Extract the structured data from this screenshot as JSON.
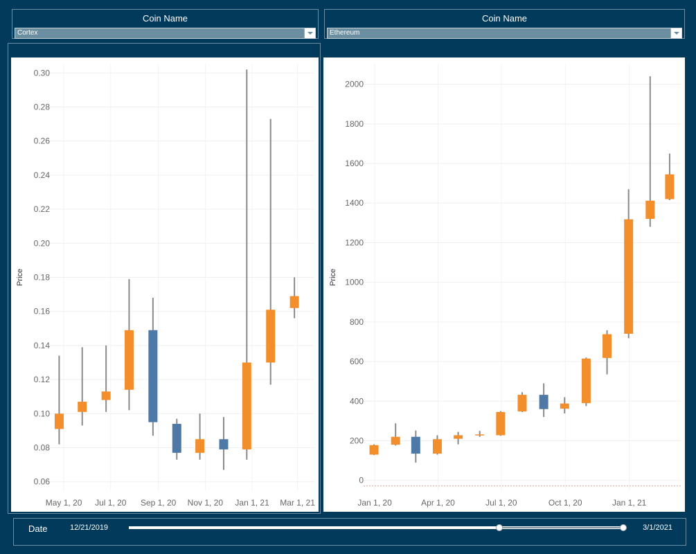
{
  "filters": {
    "left": {
      "title": "Coin Name",
      "value": "Cortex"
    },
    "right": {
      "title": "Coin Name",
      "value": "Ethereum"
    }
  },
  "date_filter": {
    "label": "Date",
    "start": "12/21/2019",
    "end": "3/1/2021",
    "selection_start_fraction": 0.74,
    "selection_end_fraction": 1.0
  },
  "colors": {
    "increase": "#f28e2b",
    "decrease": "#4e79a7",
    "wick": "#8a8a8a",
    "background": "#023a5c"
  },
  "chart_data": [
    {
      "type": "candlestick",
      "coin": "Cortex",
      "ylabel": "Price",
      "ylim": [
        0.055,
        0.305
      ],
      "yticks": [
        0.06,
        0.08,
        0.1,
        0.12,
        0.14,
        0.16,
        0.18,
        0.2,
        0.22,
        0.24,
        0.26,
        0.28,
        0.3
      ],
      "ytick_labels": [
        "0.06",
        "0.08",
        "0.10",
        "0.12",
        "0.14",
        "0.16",
        "0.18",
        "0.20",
        "0.22",
        "0.24",
        "0.26",
        "0.28",
        "0.30"
      ],
      "xlim": [
        "2020-04-12",
        "2021-03-23"
      ],
      "xticks": [
        "2020-05-01",
        "2020-07-01",
        "2020-09-01",
        "2020-11-01",
        "2021-01-01",
        "2021-03-01"
      ],
      "xtick_labels": [
        "May 1, 20",
        "Jul 1, 20",
        "Sep 1, 20",
        "Nov 1, 20",
        "Jan 1, 21",
        "Mar 1, 21"
      ],
      "candles": [
        {
          "date": "2020-04-25",
          "open": 0.091,
          "close": 0.1,
          "high": 0.134,
          "low": 0.082
        },
        {
          "date": "2020-05-25",
          "open": 0.101,
          "close": 0.107,
          "high": 0.139,
          "low": 0.093
        },
        {
          "date": "2020-06-25",
          "open": 0.108,
          "close": 0.113,
          "high": 0.14,
          "low": 0.101
        },
        {
          "date": "2020-07-25",
          "open": 0.114,
          "close": 0.149,
          "high": 0.179,
          "low": 0.102
        },
        {
          "date": "2020-08-25",
          "open": 0.149,
          "close": 0.095,
          "high": 0.168,
          "low": 0.087
        },
        {
          "date": "2020-09-25",
          "open": 0.094,
          "close": 0.077,
          "high": 0.097,
          "low": 0.073
        },
        {
          "date": "2020-10-25",
          "open": 0.077,
          "close": 0.085,
          "high": 0.1,
          "low": 0.073
        },
        {
          "date": "2020-11-25",
          "open": 0.085,
          "close": 0.079,
          "high": 0.098,
          "low": 0.067
        },
        {
          "date": "2020-12-25",
          "open": 0.079,
          "close": 0.13,
          "high": 0.302,
          "low": 0.073
        },
        {
          "date": "2021-01-25",
          "open": 0.13,
          "close": 0.161,
          "high": 0.273,
          "low": 0.117
        },
        {
          "date": "2021-02-25",
          "open": 0.162,
          "close": 0.169,
          "high": 0.18,
          "low": 0.156
        }
      ]
    },
    {
      "type": "candlestick",
      "coin": "Ethereum",
      "ylabel": "Price",
      "ylim": [
        -50,
        2100
      ],
      "yticks": [
        0,
        200,
        400,
        600,
        800,
        1000,
        1200,
        1400,
        1600,
        1800,
        2000
      ],
      "ytick_labels": [
        "0",
        "200",
        "400",
        "600",
        "800",
        "1000",
        "1200",
        "1400",
        "1600",
        "1800",
        "2000"
      ],
      "xlim": [
        "2019-12-16",
        "2021-03-16"
      ],
      "xticks": [
        "2020-01-01",
        "2020-04-01",
        "2020-07-01",
        "2020-10-01",
        "2021-01-01"
      ],
      "xtick_labels": [
        "Jan 1, 20",
        "Apr 1, 20",
        "Jul 1, 20",
        "Oct 1, 20",
        "Jan 1, 21"
      ],
      "candles": [
        {
          "date": "2019-12-31",
          "open": 130,
          "close": 178,
          "high": 182,
          "low": 128
        },
        {
          "date": "2020-01-31",
          "open": 180,
          "close": 220,
          "high": 288,
          "low": 176
        },
        {
          "date": "2020-02-29",
          "open": 220,
          "close": 135,
          "high": 252,
          "low": 90
        },
        {
          "date": "2020-03-31",
          "open": 135,
          "close": 208,
          "high": 228,
          "low": 130
        },
        {
          "date": "2020-04-30",
          "open": 210,
          "close": 228,
          "high": 245,
          "low": 182
        },
        {
          "date": "2020-05-31",
          "open": 230,
          "close": 232,
          "high": 250,
          "low": 220
        },
        {
          "date": "2020-06-30",
          "open": 228,
          "close": 345,
          "high": 350,
          "low": 225
        },
        {
          "date": "2020-07-31",
          "open": 348,
          "close": 432,
          "high": 445,
          "low": 345
        },
        {
          "date": "2020-08-31",
          "open": 432,
          "close": 360,
          "high": 490,
          "low": 320
        },
        {
          "date": "2020-09-30",
          "open": 362,
          "close": 388,
          "high": 420,
          "low": 338
        },
        {
          "date": "2020-10-31",
          "open": 390,
          "close": 615,
          "high": 620,
          "low": 375
        },
        {
          "date": "2020-11-30",
          "open": 618,
          "close": 738,
          "high": 758,
          "low": 535
        },
        {
          "date": "2020-12-31",
          "open": 740,
          "close": 1318,
          "high": 1470,
          "low": 718
        },
        {
          "date": "2021-01-31",
          "open": 1320,
          "close": 1412,
          "high": 2040,
          "low": 1280
        },
        {
          "date": "2021-02-28",
          "open": 1420,
          "close": 1545,
          "high": 1650,
          "low": 1415
        }
      ]
    }
  ]
}
